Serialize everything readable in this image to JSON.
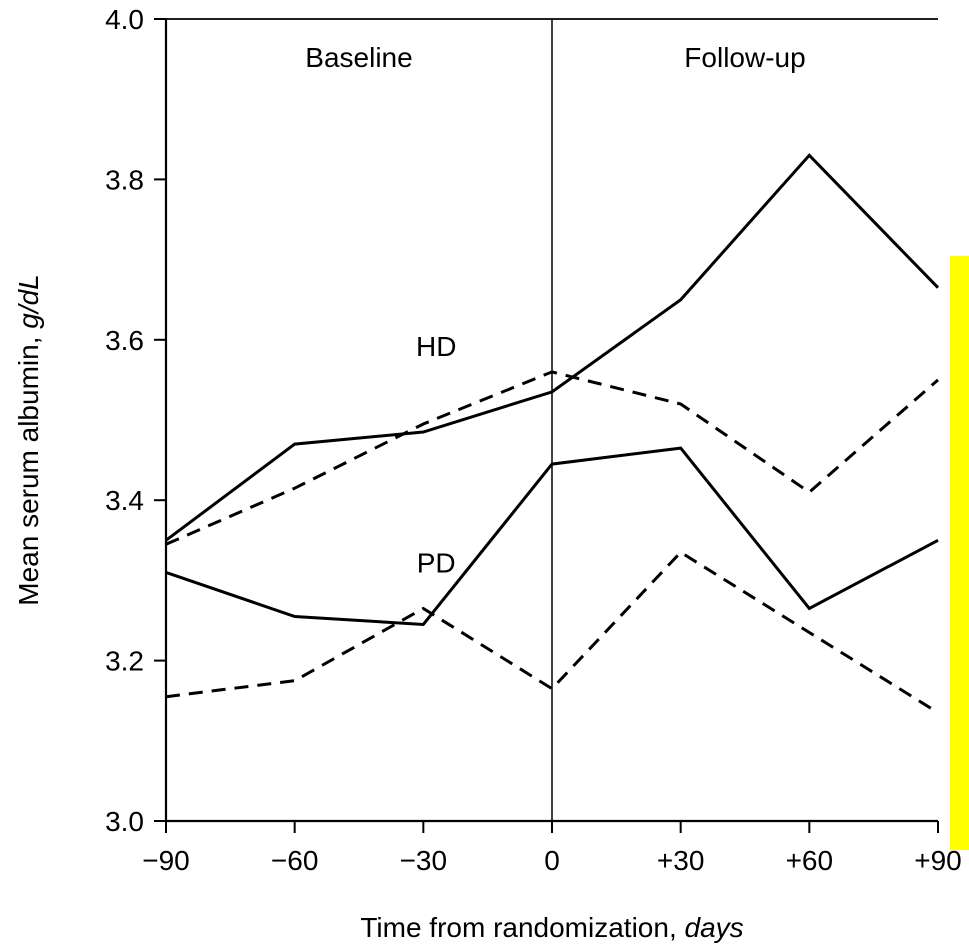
{
  "chart_data": {
    "type": "line",
    "title": "",
    "xlabel_main": "Time from randomization, ",
    "xlabel_unit": "days",
    "ylabel_main": "Mean serum albumin, ",
    "ylabel_unit": "g/dL",
    "x": [
      -90,
      -60,
      -30,
      0,
      30,
      60,
      90
    ],
    "x_tick_labels": [
      "−90",
      "−60",
      "−30",
      "0",
      "+30",
      "+60",
      "+90"
    ],
    "xlim": [
      -90,
      90
    ],
    "ylim": [
      3.0,
      4.0
    ],
    "y_ticks": [
      3.0,
      3.2,
      3.4,
      3.6,
      3.8,
      4.0
    ],
    "y_tick_labels": [
      "3.0",
      "3.2",
      "3.4",
      "3.6",
      "3.8",
      "4.0"
    ],
    "grid": false,
    "regions": [
      {
        "label": "Baseline",
        "x_start": -90,
        "x_end": 0
      },
      {
        "label": "Follow-up",
        "x_start": 0,
        "x_end": 90
      }
    ],
    "divider_x": 0,
    "group_labels": [
      {
        "text": "HD",
        "x": -27,
        "y": 3.58
      },
      {
        "text": "PD",
        "x": -27,
        "y": 3.31
      }
    ],
    "series": [
      {
        "group": "HD",
        "style": "solid",
        "values": [
          3.35,
          3.47,
          3.485,
          3.535,
          3.65,
          3.83,
          3.665
        ]
      },
      {
        "group": "HD",
        "style": "dashed",
        "values": [
          3.345,
          3.415,
          3.495,
          3.56,
          3.52,
          3.41,
          3.55
        ]
      },
      {
        "group": "PD",
        "style": "solid",
        "values": [
          3.31,
          3.255,
          3.245,
          3.445,
          3.465,
          3.265,
          3.35
        ]
      },
      {
        "group": "PD",
        "style": "dashed",
        "values": [
          3.155,
          3.175,
          3.265,
          3.165,
          3.335,
          3.235,
          3.135
        ]
      }
    ]
  },
  "highlight_color": "#ffff00",
  "line_color": "#000000"
}
